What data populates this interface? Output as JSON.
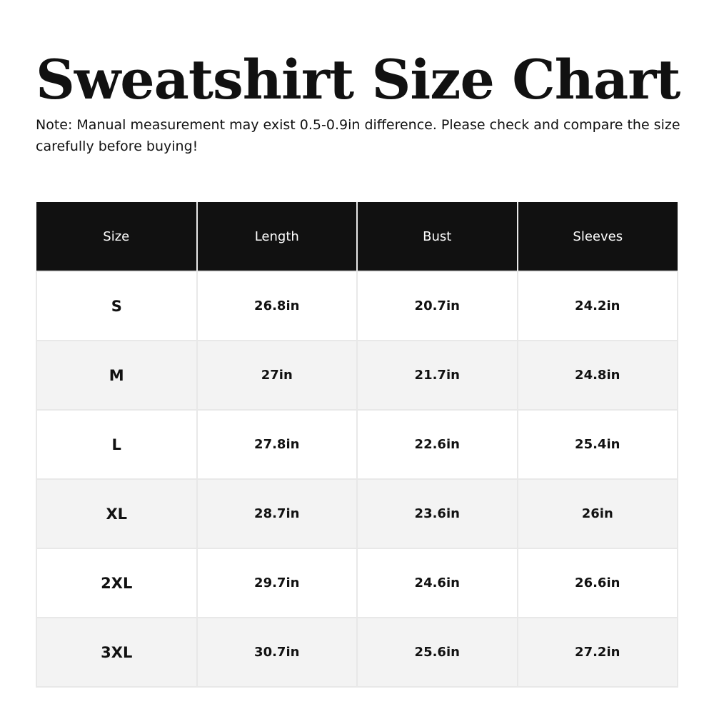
{
  "title": "Sweatshirt Size Chart",
  "note": "Note: Manual measurement may exist 0.5-0.9in difference. Please check and compare the size carefully before buying!",
  "table": {
    "headers": [
      "Size",
      "Length",
      "Bust",
      "Sleeves"
    ],
    "rows": [
      [
        "S",
        "26.8in",
        "20.7in",
        "24.2in"
      ],
      [
        "M",
        "27in",
        "21.7in",
        "24.8in"
      ],
      [
        "L",
        "27.8in",
        "22.6in",
        "25.4in"
      ],
      [
        "XL",
        "28.7in",
        "23.6in",
        "26in"
      ],
      [
        "2XL",
        "29.7in",
        "24.6in",
        "26.6in"
      ],
      [
        "3XL",
        "30.7in",
        "25.6in",
        "27.2in"
      ]
    ]
  },
  "colors": {
    "header_bg": "#111111",
    "alt_row_bg": "#f3f3f3",
    "border": "#e8e8e8"
  }
}
